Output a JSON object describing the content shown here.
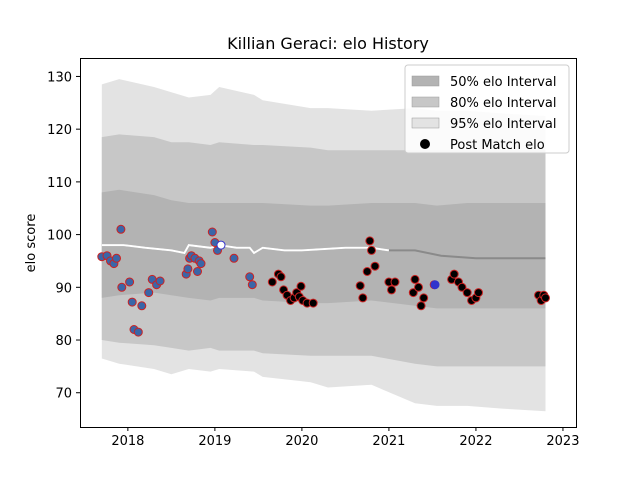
{
  "chart_data": {
    "type": "scatter",
    "title": "Killian Geraci: elo History",
    "xlabel": "",
    "ylabel": "elo score",
    "xlim": [
      2017.45,
      2023.15
    ],
    "ylim": [
      63.5,
      133.5
    ],
    "x_ticks": [
      2018,
      2019,
      2020,
      2021,
      2022,
      2023
    ],
    "y_ticks": [
      70,
      80,
      90,
      100,
      110,
      120,
      130
    ],
    "grid": false,
    "legend_position": "top-right",
    "legend": [
      {
        "label": "50% elo Interval",
        "color": "#b3b3b3"
      },
      {
        "label": "80% elo Interval",
        "color": "#c7c7c7"
      },
      {
        "label": "95% elo Interval",
        "color": "#e3e3e3"
      },
      {
        "label": "Post Match elo",
        "color": "#000000"
      }
    ],
    "bands": {
      "x": [
        2017.7,
        2017.9,
        2018.3,
        2018.5,
        2018.7,
        2018.95,
        2019.05,
        2019.45,
        2019.55,
        2020.1,
        2020.3,
        2020.8,
        2021.3,
        2021.55,
        2021.9,
        2022.3,
        2022.8
      ],
      "p95_low": [
        76.5,
        75.5,
        74.5,
        73.5,
        74.5,
        74.0,
        74.5,
        74.0,
        73.0,
        72.0,
        71.0,
        71.5,
        68.0,
        67.5,
        67.5,
        67.0,
        66.5
      ],
      "p95_high": [
        128.5,
        129.5,
        128.0,
        127.0,
        126.0,
        126.5,
        128.0,
        126.5,
        125.5,
        124.0,
        124.0,
        123.5,
        124.0,
        123.5,
        123.5,
        123.0,
        122.5
      ],
      "p80_low": [
        80.0,
        79.5,
        79.0,
        78.5,
        78.0,
        78.5,
        78.0,
        78.0,
        77.5,
        77.0,
        77.0,
        77.0,
        75.5,
        75.0,
        75.0,
        75.0,
        75.0
      ],
      "p80_high": [
        118.5,
        119.0,
        118.5,
        117.5,
        117.5,
        117.0,
        117.5,
        117.0,
        117.0,
        116.5,
        116.0,
        116.0,
        116.0,
        116.0,
        116.0,
        116.0,
        116.0
      ],
      "p50_low": [
        88.0,
        88.5,
        89.0,
        88.5,
        88.0,
        87.5,
        88.0,
        88.0,
        87.5,
        87.0,
        87.0,
        87.5,
        86.5,
        86.0,
        86.0,
        86.0,
        86.0
      ],
      "p50_high": [
        108.0,
        108.5,
        107.5,
        106.5,
        106.0,
        106.0,
        106.0,
        106.0,
        106.0,
        105.5,
        105.5,
        106.0,
        106.0,
        105.5,
        106.0,
        106.0,
        106.0
      ]
    },
    "mean_line": {
      "x": [
        2017.7,
        2017.95,
        2018.2,
        2018.5,
        2018.65,
        2018.7,
        2018.95,
        2019.05,
        2019.25,
        2019.4,
        2019.45,
        2019.55,
        2019.8,
        2020.0,
        2020.5,
        2020.8,
        2021.0,
        2021.3,
        2021.6,
        2022.0,
        2022.8
      ],
      "y": [
        98.0,
        98.0,
        97.5,
        97.0,
        96.5,
        98.0,
        97.5,
        98.0,
        97.5,
        97.5,
        96.5,
        97.5,
        97.0,
        97.0,
        97.5,
        97.5,
        97.0,
        97.0,
        96.0,
        95.5,
        95.5
      ]
    },
    "series": [
      {
        "name": "Post Match elo",
        "x": [
          2017.7,
          2017.76,
          2017.8,
          2017.84,
          2017.87,
          2017.92,
          2017.93,
          2018.02,
          2018.05,
          2018.07,
          2018.12,
          2018.16,
          2018.24,
          2018.28,
          2018.33,
          2018.37,
          2018.67,
          2018.69,
          2018.71,
          2018.73,
          2018.77,
          2018.8,
          2018.82,
          2018.84,
          2018.97,
          2019.0,
          2019.03,
          2019.07,
          2019.22,
          2019.4,
          2019.43,
          2019.66,
          2019.73,
          2019.76,
          2019.79,
          2019.83,
          2019.87,
          2019.91,
          2019.94,
          2019.97,
          2019.99,
          2020.01,
          2020.06,
          2020.13,
          2020.67,
          2020.7,
          2020.75,
          2020.78,
          2020.8,
          2020.84,
          2021.0,
          2021.03,
          2021.07,
          2021.28,
          2021.3,
          2021.34,
          2021.37,
          2021.4,
          2021.52,
          2021.53,
          2021.72,
          2021.75,
          2021.8,
          2021.84,
          2021.9,
          2021.95,
          2022.0,
          2022.03,
          2022.72,
          2022.75,
          2022.78,
          2022.8
        ],
        "y": [
          95.8,
          96.0,
          95.0,
          94.5,
          95.5,
          101.0,
          90.0,
          91.0,
          87.2,
          82.0,
          81.5,
          86.5,
          89.0,
          91.5,
          90.5,
          91.2,
          92.5,
          93.5,
          95.5,
          96.0,
          95.5,
          93.0,
          95.0,
          94.5,
          100.5,
          98.5,
          97.0,
          98.0,
          95.5,
          92.0,
          90.5,
          91.0,
          92.5,
          92.0,
          89.5,
          88.5,
          87.5,
          88.0,
          89.0,
          88.2,
          90.2,
          87.5,
          87.0,
          87.0,
          90.3,
          88.0,
          93.0,
          98.8,
          97.0,
          94.0,
          91.0,
          89.5,
          91.0,
          89.0,
          91.5,
          90.0,
          86.5,
          88.0,
          90.5,
          90.5,
          91.5,
          92.5,
          91.0,
          90.0,
          89.0,
          87.5,
          88.0,
          89.0,
          88.5,
          87.5,
          88.5,
          88.0
        ],
        "edge": [
          "#cc2222",
          "#cc2222",
          "#cc2222",
          "#cc2222",
          "#cc2222",
          "#cc2222",
          "#cc2222",
          "#cc2222",
          "#cc2222",
          "#cc2222",
          "#cc2222",
          "#cc2222",
          "#cc2222",
          "#cc2222",
          "#cc2222",
          "#cc2222",
          "#cc2222",
          "#cc2222",
          "#cc2222",
          "#cc2222",
          "#cc2222",
          "#cc2222",
          "#cc2222",
          "#cc2222",
          "#cc2222",
          "#cc2222",
          "#cc2222",
          "#3333cc",
          "#cc2222",
          "#cc2222",
          "#cc2222",
          "#cc2222",
          "#cc2222",
          "#cc2222",
          "#cc2222",
          "#cc2222",
          "#cc2222",
          "#cc2222",
          "#cc2222",
          "#cc2222",
          "#cc2222",
          "#cc2222",
          "#cc2222",
          "#cc2222",
          "#cc2222",
          "#cc2222",
          "#cc2222",
          "#cc2222",
          "#cc2222",
          "#cc2222",
          "#cc2222",
          "#cc2222",
          "#cc2222",
          "#cc2222",
          "#cc2222",
          "#cc2222",
          "#cc2222",
          "#cc2222",
          "#cc2222",
          "#3333cc",
          "#cc2222",
          "#cc2222",
          "#cc2222",
          "#cc2222",
          "#cc2222",
          "#cc2222",
          "#cc2222",
          "#cc2222",
          "#cc2222",
          "#cc2222",
          "#cc2222",
          "#cc2222"
        ],
        "fill": [
          "#3a66a8",
          "#3a66a8",
          "#3a66a8",
          "#3a66a8",
          "#3a66a8",
          "#3a66a8",
          "#3a66a8",
          "#3a66a8",
          "#3a66a8",
          "#3a66a8",
          "#3a66a8",
          "#3a66a8",
          "#3a66a8",
          "#3a66a8",
          "#3a66a8",
          "#3a66a8",
          "#3a66a8",
          "#3a66a8",
          "#3a66a8",
          "#3a66a8",
          "#3a66a8",
          "#3a66a8",
          "#3a66a8",
          "#3a66a8",
          "#3a66a8",
          "#3a66a8",
          "#3a66a8",
          "#ffffff",
          "#3a66a8",
          "#3a66a8",
          "#3a66a8",
          "#000000",
          "#000000",
          "#000000",
          "#000000",
          "#000000",
          "#000000",
          "#000000",
          "#000000",
          "#000000",
          "#000000",
          "#000000",
          "#000000",
          "#000000",
          "#000000",
          "#000000",
          "#000000",
          "#000000",
          "#000000",
          "#000000",
          "#000000",
          "#000000",
          "#000000",
          "#000000",
          "#000000",
          "#000000",
          "#000000",
          "#000000",
          "#3a66a8",
          "#3333cc",
          "#000000",
          "#000000",
          "#000000",
          "#000000",
          "#000000",
          "#000000",
          "#000000",
          "#000000",
          "#000000",
          "#000000",
          "#000000",
          "#000000"
        ]
      }
    ]
  }
}
